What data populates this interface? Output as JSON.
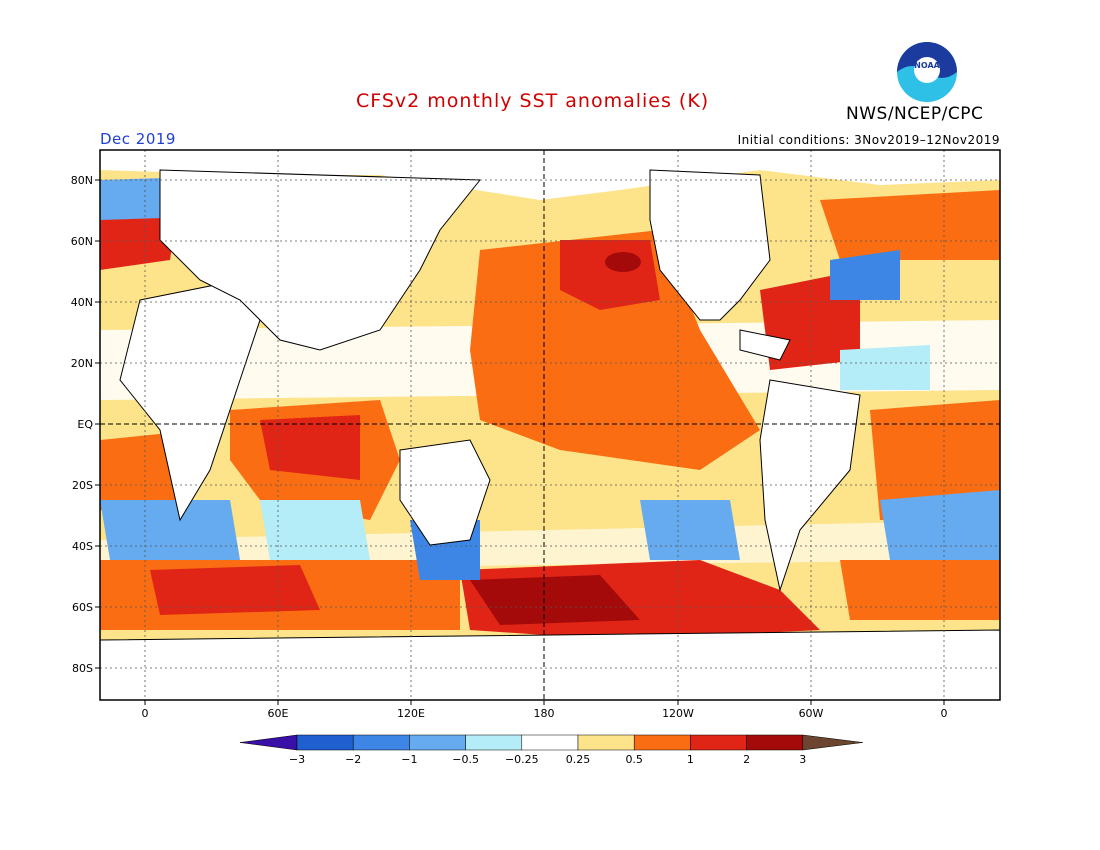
{
  "header": {
    "title": "CFSv2 monthly SST anomalies (K)",
    "agency": "NWS/NCEP/CPC",
    "month": "Dec 2019",
    "initial_conditions": "Initial conditions: 3Nov2019–12Nov2019",
    "logo_text": "NOAA"
  },
  "map": {
    "lat_labels": [
      "80N",
      "60N",
      "40N",
      "20N",
      "EQ",
      "20S",
      "40S",
      "60S",
      "80S"
    ],
    "lon_labels": [
      "0",
      "60E",
      "120E",
      "180",
      "120W",
      "60W",
      "0"
    ]
  },
  "colorbar": {
    "tick_labels": [
      "−3",
      "−2",
      "−1",
      "−0.5",
      "−0.25",
      "0.25",
      "0.5",
      "1",
      "2",
      "3"
    ],
    "colors": [
      "#3a0fa8",
      "#1f5fd0",
      "#3d86e6",
      "#66aaef",
      "#b4ecf7",
      "#ffffff",
      "#fde38a",
      "#fb6d12",
      "#e02517",
      "#a50a0a",
      "#6b4530"
    ]
  },
  "palette": {
    "land": "#ffffff",
    "ocean_base": "#fde38a",
    "warm": "#fb6d12",
    "warmer": "#e02517",
    "hot": "#a50a0a",
    "cool": "#66aaef",
    "cooler": "#3d86e6",
    "cold": "#1f5fd0",
    "neutral": "#ffffff"
  }
}
